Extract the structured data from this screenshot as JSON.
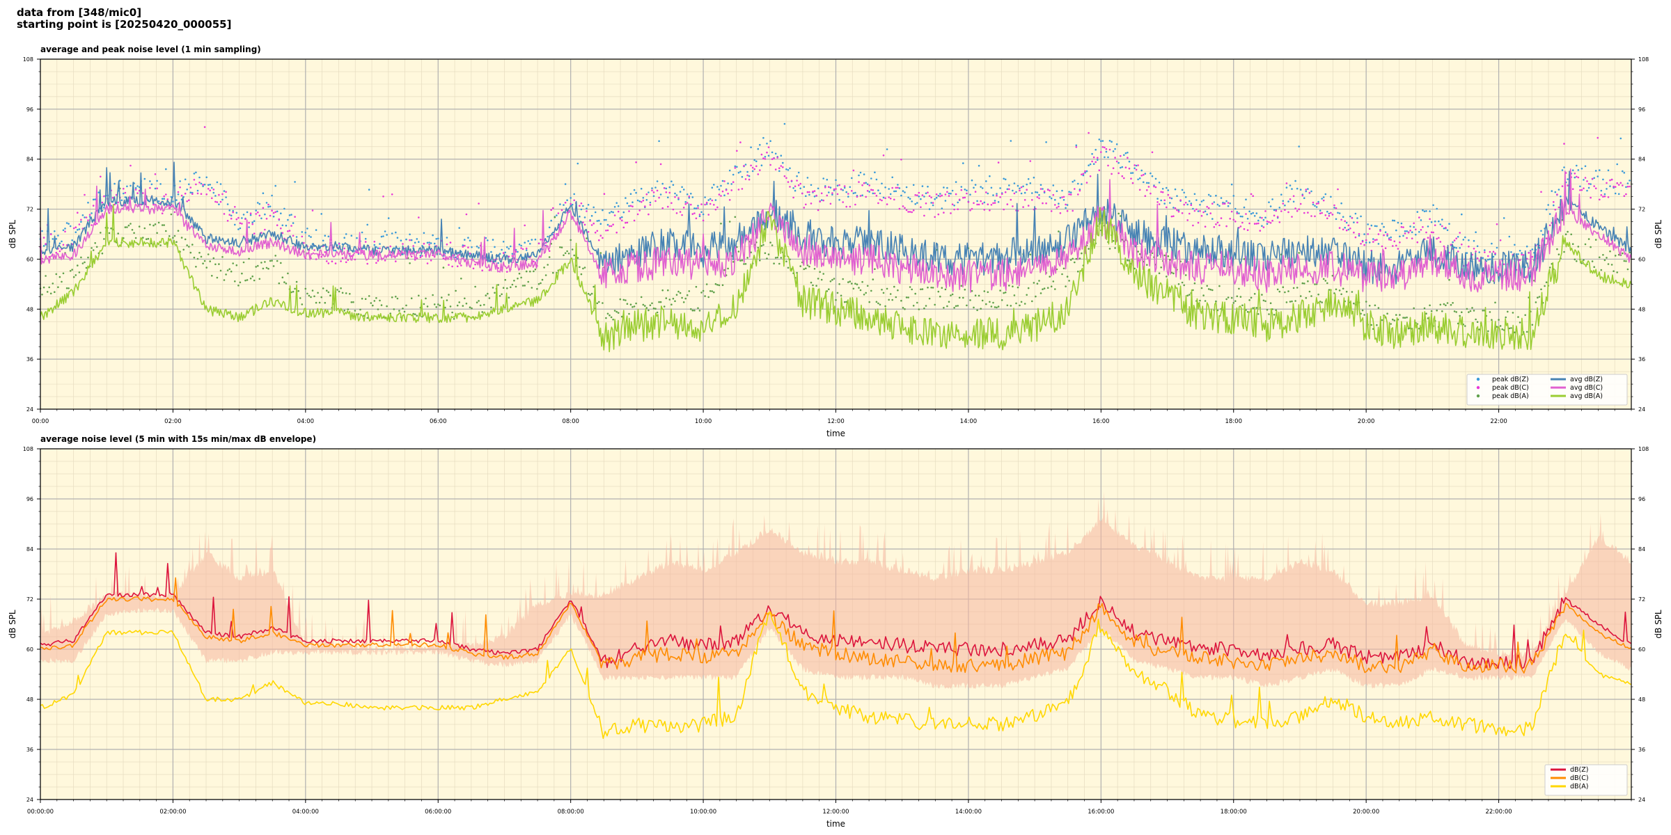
{
  "header": {
    "line1": "data from [348/mic0]",
    "line2": "starting point is [20250420_000055]"
  },
  "chart_data": [
    {
      "type": "line",
      "title": "average and peak noise level (1 min sampling)",
      "xlabel": "time",
      "ylabel": "dB SPL",
      "ylim": [
        24,
        108
      ],
      "y_ticks": [
        24,
        36,
        48,
        60,
        72,
        84,
        96,
        108
      ],
      "xlim_hours": [
        0,
        24
      ],
      "x_tick_labels": [
        "00:00",
        "02:00",
        "04:00",
        "06:00",
        "08:00",
        "10:00",
        "12:00",
        "14:00",
        "16:00",
        "18:00",
        "20:00",
        "22:00"
      ],
      "grid": true,
      "background": "#fff8dc",
      "legend_position": "bottom-right",
      "legend_columns": 2,
      "x_hours": [
        0,
        0.5,
        1,
        1.5,
        2,
        2.5,
        3,
        3.5,
        4,
        4.5,
        5,
        5.5,
        6,
        6.5,
        7,
        7.5,
        8,
        8.5,
        9,
        9.5,
        10,
        10.5,
        11,
        11.5,
        12,
        12.5,
        13,
        13.5,
        14,
        14.5,
        15,
        15.5,
        16,
        16.5,
        17,
        17.5,
        18,
        18.5,
        19,
        19.5,
        20,
        20.5,
        21,
        21.5,
        22,
        22.5,
        23,
        23.5,
        24
      ],
      "series": [
        {
          "name": "peak dB(Z)",
          "kind": "scatter",
          "color": "#3a9ad9",
          "values": [
            64,
            66,
            75,
            76,
            75,
            80,
            68,
            72,
            64,
            63,
            63,
            63,
            63,
            62,
            61,
            62,
            74,
            68,
            74,
            76,
            72,
            80,
            86,
            76,
            76,
            78,
            76,
            74,
            76,
            76,
            76,
            74,
            86,
            82,
            74,
            72,
            72,
            70,
            76,
            72,
            66,
            66,
            70,
            62,
            60,
            60,
            80,
            78,
            78
          ]
        },
        {
          "name": "peak dB(C)",
          "kind": "scatter",
          "color": "#e838d8",
          "values": [
            62,
            64,
            73,
            74,
            73,
            78,
            66,
            70,
            62,
            61,
            61,
            61,
            61,
            60,
            59,
            60,
            72,
            66,
            72,
            74,
            70,
            78,
            84,
            74,
            74,
            76,
            74,
            72,
            74,
            74,
            74,
            72,
            84,
            80,
            72,
            70,
            70,
            68,
            74,
            70,
            64,
            64,
            68,
            60,
            58,
            58,
            78,
            76,
            76
          ]
        },
        {
          "name": "peak dB(A)",
          "kind": "scatter",
          "color": "#5fa04a",
          "values": [
            52,
            55,
            65,
            66,
            65,
            58,
            56,
            58,
            50,
            50,
            48,
            48,
            48,
            48,
            52,
            55,
            62,
            46,
            48,
            50,
            50,
            60,
            62,
            56,
            52,
            52,
            50,
            50,
            50,
            50,
            52,
            56,
            66,
            60,
            58,
            50,
            50,
            48,
            52,
            52,
            46,
            44,
            46,
            46,
            44,
            44,
            64,
            58,
            60
          ]
        },
        {
          "name": "avg dB(Z)",
          "kind": "line",
          "color": "#4682b4",
          "values": [
            62,
            63,
            74,
            74,
            74,
            65,
            64,
            66,
            63,
            63,
            62,
            62,
            62,
            61,
            60,
            61,
            73,
            58,
            62,
            64,
            62,
            64,
            72,
            66,
            64,
            64,
            62,
            60,
            60,
            60,
            62,
            64,
            72,
            66,
            64,
            62,
            62,
            60,
            62,
            62,
            58,
            58,
            62,
            58,
            58,
            58,
            74,
            68,
            62
          ]
        },
        {
          "name": "avg dB(C)",
          "kind": "line",
          "color": "#e060d0",
          "values": [
            60,
            61,
            72,
            72,
            72,
            63,
            62,
            64,
            61,
            61,
            61,
            61,
            61,
            59,
            58,
            59,
            71,
            56,
            58,
            60,
            58,
            60,
            70,
            62,
            60,
            60,
            58,
            56,
            56,
            56,
            58,
            60,
            70,
            62,
            60,
            58,
            58,
            56,
            58,
            58,
            56,
            56,
            60,
            56,
            56,
            56,
            72,
            66,
            60
          ]
        },
        {
          "name": "avg dB(A)",
          "kind": "line",
          "color": "#9acd32",
          "values": [
            46,
            52,
            64,
            64,
            64,
            48,
            46,
            50,
            47,
            47,
            46,
            46,
            46,
            46,
            48,
            50,
            60,
            41,
            44,
            45,
            44,
            48,
            70,
            50,
            48,
            46,
            44,
            42,
            42,
            42,
            44,
            48,
            70,
            56,
            52,
            46,
            46,
            44,
            46,
            50,
            44,
            42,
            44,
            42,
            42,
            42,
            64,
            56,
            54
          ]
        }
      ]
    },
    {
      "type": "line",
      "title": "average noise level (5 min with 15s min/max dB envelope)",
      "xlabel": "time",
      "ylabel": "dB SPL",
      "ylim": [
        24,
        108
      ],
      "y_ticks": [
        24,
        36,
        48,
        60,
        72,
        84,
        96,
        108
      ],
      "xlim_hours": [
        0,
        24
      ],
      "x_tick_labels": [
        "00:00:00",
        "02:00:00",
        "04:00:00",
        "06:00:00",
        "08:00:00",
        "10:00:00",
        "12:00:00",
        "14:00:00",
        "16:00:00",
        "18:00:00",
        "20:00:00",
        "22:00:00"
      ],
      "grid": true,
      "background": "#fff8dc",
      "legend_position": "bottom-right",
      "legend_columns": 1,
      "x_hours": [
        0,
        0.5,
        1,
        1.5,
        2,
        2.5,
        3,
        3.5,
        4,
        4.5,
        5,
        5.5,
        6,
        6.5,
        7,
        7.5,
        8,
        8.5,
        9,
        9.5,
        10,
        10.5,
        11,
        11.5,
        12,
        12.5,
        13,
        13.5,
        14,
        14.5,
        15,
        15.5,
        16,
        16.5,
        17,
        17.5,
        18,
        18.5,
        19,
        19.5,
        20,
        20.5,
        21,
        21.5,
        22,
        22.5,
        23,
        23.5,
        24
      ],
      "envelope": {
        "color": "#f5b7a0",
        "min": [
          58,
          58,
          69,
          70,
          70,
          58,
          58,
          60,
          60,
          60,
          60,
          60,
          60,
          58,
          57,
          58,
          69,
          54,
          54,
          54,
          54,
          54,
          66,
          56,
          54,
          54,
          54,
          52,
          52,
          52,
          54,
          56,
          66,
          58,
          56,
          54,
          54,
          52,
          54,
          56,
          52,
          52,
          56,
          54,
          54,
          54,
          68,
          60,
          56
        ],
        "max": [
          66,
          70,
          76,
          76,
          76,
          86,
          80,
          82,
          64,
          64,
          63,
          63,
          64,
          64,
          66,
          74,
          76,
          76,
          80,
          84,
          82,
          86,
          92,
          86,
          84,
          84,
          82,
          80,
          82,
          82,
          84,
          86,
          94,
          88,
          84,
          80,
          80,
          80,
          84,
          82,
          74,
          74,
          76,
          64,
          62,
          62,
          76,
          90,
          84
        ]
      },
      "series": [
        {
          "name": "dB(Z)",
          "kind": "line",
          "color": "#dc143c",
          "values": [
            61,
            62,
            73,
            73,
            73,
            64,
            63,
            65,
            62,
            62,
            62,
            62,
            62,
            60,
            59,
            60,
            72,
            57,
            60,
            62,
            61,
            62,
            70,
            64,
            62,
            62,
            61,
            60,
            60,
            60,
            61,
            62,
            72,
            64,
            62,
            60,
            60,
            58,
            60,
            61,
            58,
            58,
            61,
            57,
            57,
            57,
            72,
            66,
            61
          ]
        },
        {
          "name": "dB(C)",
          "kind": "line",
          "color": "#ff8c00",
          "values": [
            60,
            61,
            72,
            72,
            72,
            63,
            62,
            64,
            61,
            61,
            61,
            61,
            61,
            59,
            58,
            59,
            71,
            56,
            58,
            59,
            58,
            59,
            68,
            61,
            59,
            58,
            57,
            56,
            56,
            56,
            58,
            59,
            70,
            62,
            59,
            58,
            57,
            56,
            58,
            59,
            56,
            56,
            60,
            56,
            56,
            56,
            71,
            64,
            60
          ]
        },
        {
          "name": "dB(A)",
          "kind": "line",
          "color": "#ffd700",
          "values": [
            46,
            49,
            64,
            64,
            64,
            48,
            48,
            52,
            47,
            47,
            46,
            46,
            46,
            46,
            48,
            50,
            60,
            40,
            42,
            41,
            42,
            44,
            70,
            50,
            46,
            44,
            43,
            42,
            42,
            42,
            44,
            47,
            66,
            54,
            50,
            44,
            43,
            42,
            44,
            48,
            44,
            42,
            44,
            42,
            41,
            41,
            64,
            54,
            52
          ]
        }
      ]
    }
  ]
}
